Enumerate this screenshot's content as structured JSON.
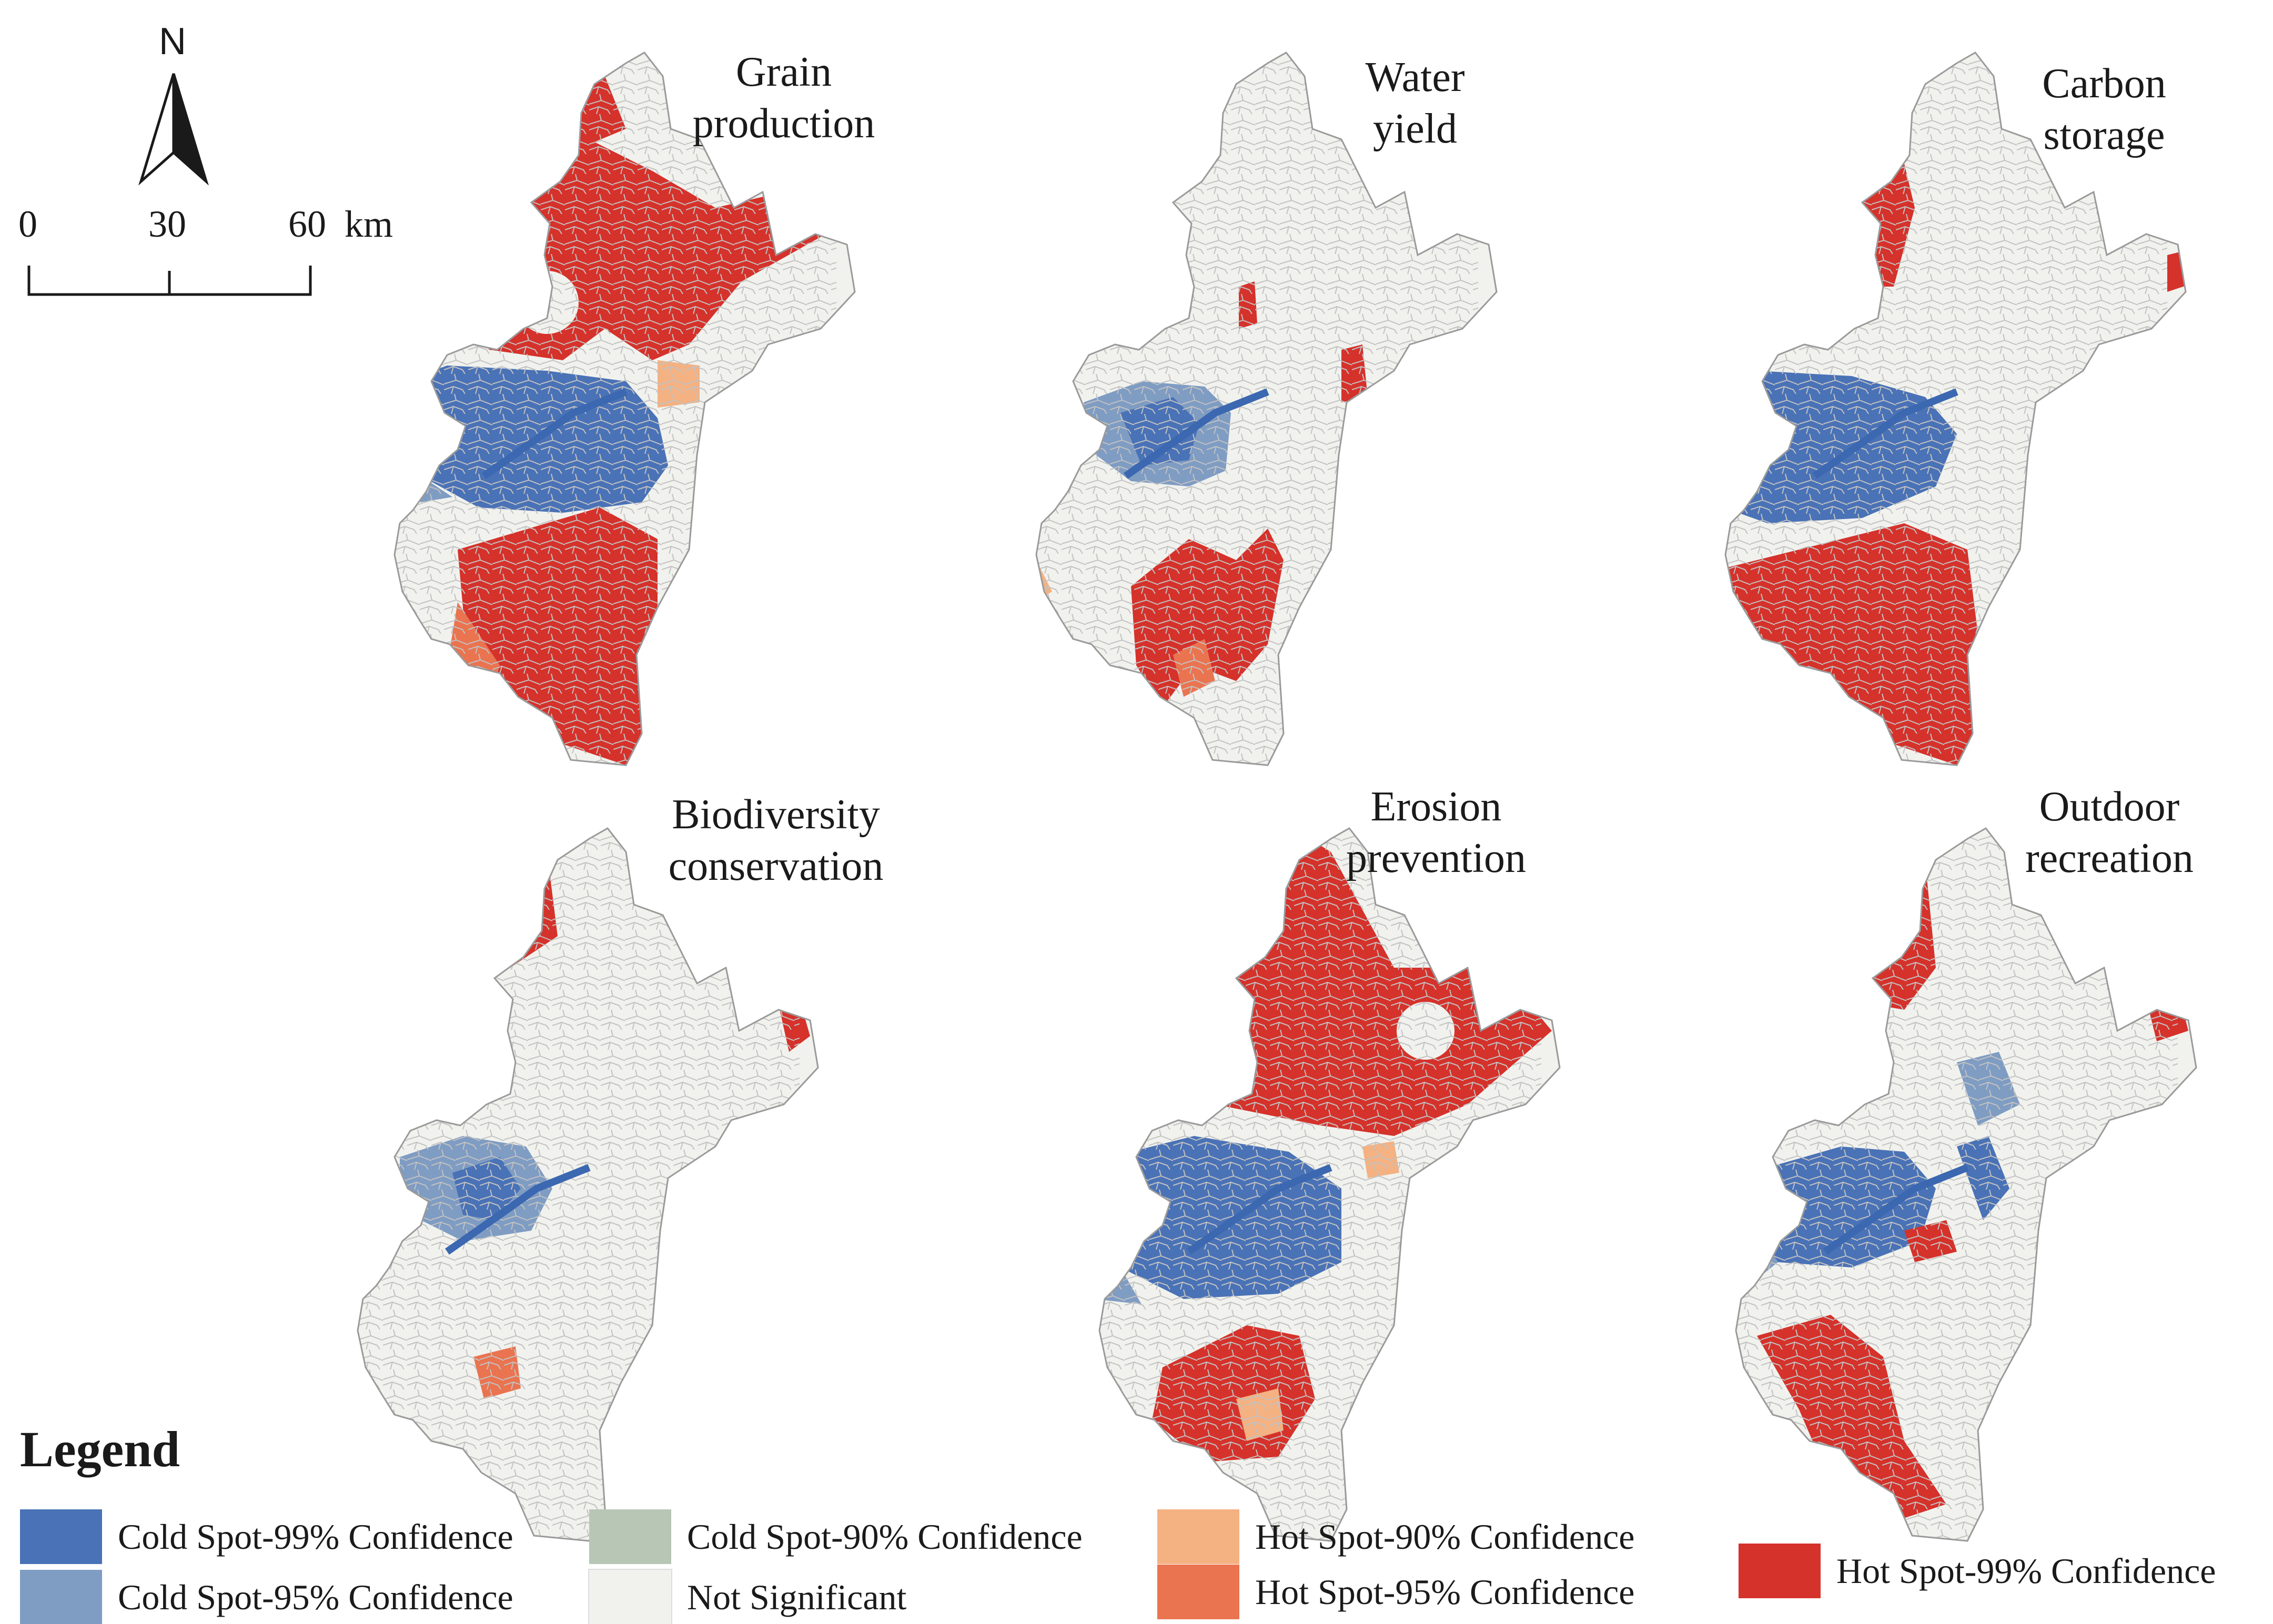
{
  "colors": {
    "cold_99": "#4a72b6",
    "cold_95": "#7f9cc3",
    "cold_90": "#b7c6b5",
    "not_significant": "#f1f2ee",
    "hot_90": "#f4b182",
    "hot_95": "#ea7450",
    "hot_99": "#d5322b",
    "river": "#3b68b0",
    "boundary": "#c8c8c8"
  },
  "north_arrow": {
    "label": "N",
    "icon": "north-arrow-icon"
  },
  "scale_bar": {
    "labels": [
      "0",
      "30",
      "60"
    ],
    "unit": "km"
  },
  "panels": [
    {
      "title_lines": [
        "Grain",
        "production"
      ]
    },
    {
      "title_lines": [
        "Water",
        "yield"
      ]
    },
    {
      "title_lines": [
        "Carbon",
        "storage"
      ]
    },
    {
      "title_lines": [
        "Biodiversity",
        "conservation"
      ]
    },
    {
      "title_lines": [
        "Erosion",
        "prevention"
      ]
    },
    {
      "title_lines": [
        "Outdoor",
        "recreation"
      ]
    }
  ],
  "legend": {
    "title": "Legend",
    "items": [
      {
        "label": "Cold Spot-99% Confidence",
        "color": "#4a72b6"
      },
      {
        "label": "Cold Spot-95% Confidence",
        "color": "#7f9cc3"
      },
      {
        "label": "Cold Spot-90% Confidence",
        "color": "#b7c6b5"
      },
      {
        "label": "Not Significant",
        "color": "#f1f2ee"
      },
      {
        "label": "Hot Spot-90% Confidence",
        "color": "#f4b182"
      },
      {
        "label": "Hot Spot-95% Confidence",
        "color": "#ea7450"
      },
      {
        "label": "Hot Spot-99% Confidence",
        "color": "#d5322b"
      }
    ]
  }
}
